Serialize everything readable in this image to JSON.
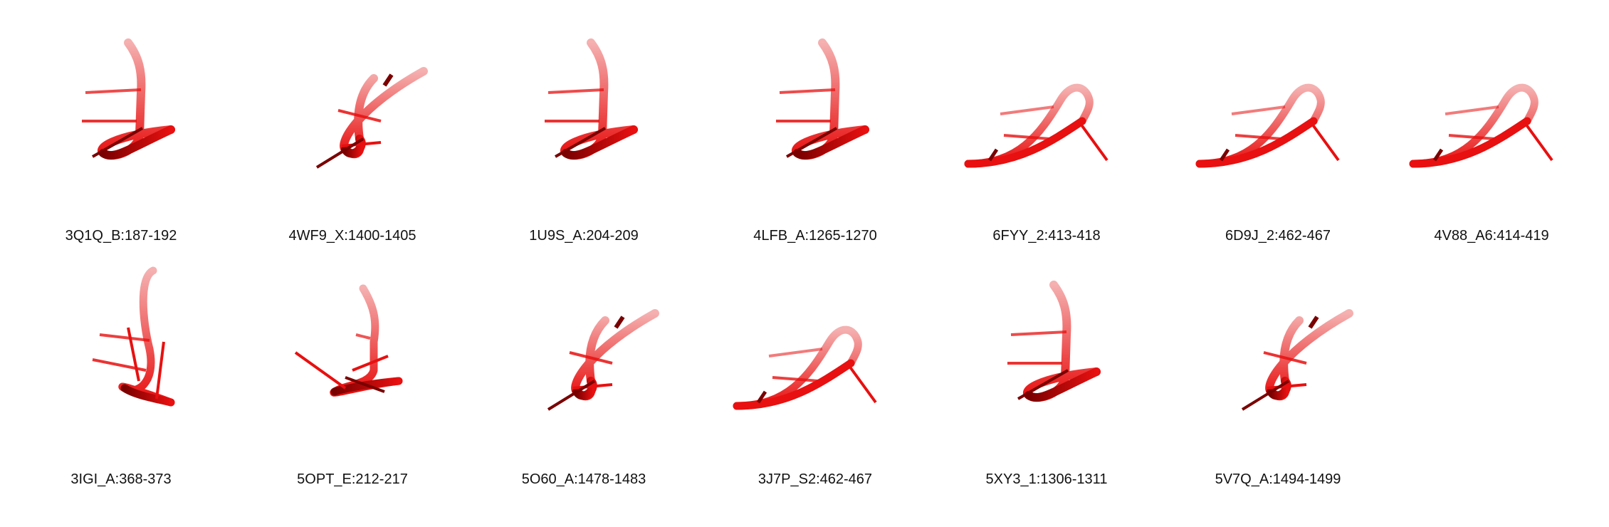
{
  "colors": {
    "background": "#ffffff",
    "strand_light": "#f5b0b0",
    "strand": "#e81010",
    "strand_dark": "#7a0000",
    "label_text": "#111111"
  },
  "icons": {
    "structure_render": "rna-hairpin-3d-render-icon"
  },
  "grid": {
    "items": [
      {
        "id": "3Q1Q_B",
        "label": "3Q1Q_B:187-192"
      },
      {
        "id": "4WF9_X",
        "label": "4WF9_X:1400-1405"
      },
      {
        "id": "1U9S_A",
        "label": "1U9S_A:204-209"
      },
      {
        "id": "4LFB_A",
        "label": "4LFB_A:1265-1270"
      },
      {
        "id": "6FYY_2",
        "label": "6FYY_2:413-418"
      },
      {
        "id": "6D9J_2",
        "label": "6D9J_2:462-467"
      },
      {
        "id": "4V88_A6",
        "label": "4V88_A6:414-419"
      },
      {
        "id": "3IGI_A",
        "label": "3IGI_A:368-373"
      },
      {
        "id": "5OPT_E",
        "label": "5OPT_E:212-217"
      },
      {
        "id": "5O60_A",
        "label": "5O60_A:1478-1483"
      },
      {
        "id": "3J7P_S2",
        "label": "3J7P_S2:462-467"
      },
      {
        "id": "5XY3_1",
        "label": "5XY3_1:1306-1311"
      },
      {
        "id": "5V7Q_A",
        "label": "5V7Q_A:1494-1499"
      }
    ]
  }
}
